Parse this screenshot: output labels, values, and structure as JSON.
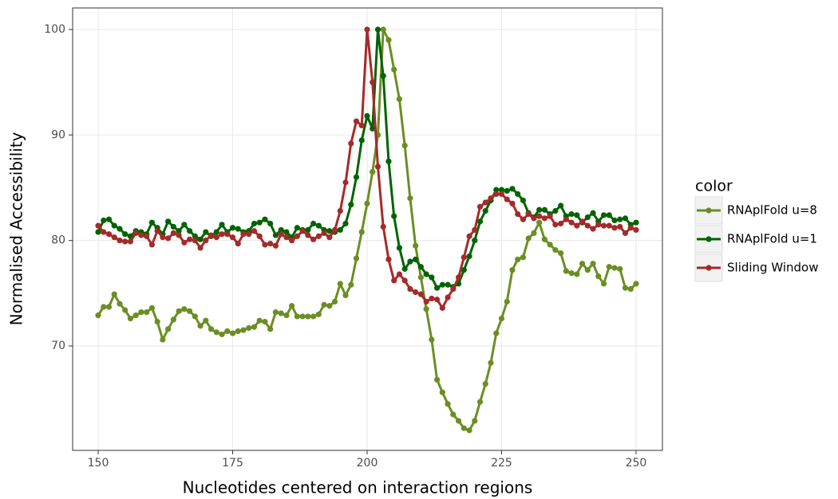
{
  "chart_data": {
    "type": "line",
    "x_label": "Nucleotides centered on interaction regions",
    "y_label": "Normalised Accessibility",
    "legend_title": "color",
    "legend": "right",
    "grid": true,
    "x": [
      150,
      151,
      152,
      153,
      154,
      155,
      156,
      157,
      158,
      159,
      160,
      161,
      162,
      163,
      164,
      165,
      166,
      167,
      168,
      169,
      170,
      171,
      172,
      173,
      174,
      175,
      176,
      177,
      178,
      179,
      180,
      181,
      182,
      183,
      184,
      185,
      186,
      187,
      188,
      189,
      190,
      191,
      192,
      193,
      194,
      195,
      196,
      197,
      198,
      199,
      200,
      201,
      202,
      203,
      204,
      205,
      206,
      207,
      208,
      209,
      210,
      211,
      212,
      213,
      214,
      215,
      216,
      217,
      218,
      219,
      220,
      221,
      222,
      223,
      224,
      225,
      226,
      227,
      228,
      229,
      230,
      231,
      232,
      233,
      234,
      235,
      236,
      237,
      238,
      239,
      240,
      241,
      242,
      243,
      244,
      245,
      246,
      247,
      248,
      249,
      250
    ],
    "xlim": [
      145.25,
      254.9
    ],
    "xticks": [
      150,
      175,
      200,
      225,
      250
    ],
    "ylim": [
      60.1,
      102.04
    ],
    "yticks": [
      70,
      80,
      90,
      100
    ],
    "series": [
      {
        "name": "RNAplFold u=8",
        "color": "#6b8e23",
        "values": [
          72.9,
          73.7,
          73.7,
          74.9,
          74.0,
          73.4,
          72.6,
          72.9,
          73.2,
          73.2,
          73.6,
          72.3,
          70.6,
          71.6,
          72.5,
          73.3,
          73.5,
          73.3,
          72.8,
          71.9,
          72.4,
          71.6,
          71.3,
          71.1,
          71.4,
          71.2,
          71.4,
          71.5,
          71.7,
          71.8,
          72.4,
          72.3,
          71.6,
          73.2,
          73.1,
          72.9,
          73.8,
          72.8,
          72.8,
          72.8,
          72.8,
          73.0,
          73.9,
          73.8,
          74.2,
          75.9,
          74.8,
          75.8,
          78.3,
          80.8,
          83.5,
          86.5,
          90.0,
          100,
          99.0,
          96.2,
          93.4,
          89.0,
          84.0,
          79.5,
          76.5,
          73.5,
          70.6,
          66.8,
          65.6,
          64.5,
          63.5,
          62.9,
          62.2,
          62.0,
          62.9,
          64.7,
          66.4,
          68.4,
          71.2,
          72.6,
          74.2,
          77.2,
          78.2,
          78.4,
          80.2,
          80.7,
          81.7,
          80.1,
          79.6,
          79.1,
          78.8,
          77.1,
          76.9,
          76.8,
          77.8,
          77.2,
          77.8,
          76.6,
          75.9,
          77.5,
          77.4,
          77.3,
          75.5,
          75.4,
          75.9
        ]
      },
      {
        "name": "RNAplFold u=1",
        "color": "#006400",
        "values": [
          80.8,
          81.9,
          82.0,
          81.4,
          81.1,
          80.6,
          80.4,
          80.9,
          80.8,
          80.6,
          81.7,
          81.2,
          80.6,
          81.8,
          81.3,
          80.9,
          81.5,
          80.9,
          80.4,
          80.1,
          80.8,
          80.4,
          80.8,
          81.5,
          80.8,
          81.2,
          81.1,
          80.8,
          80.9,
          81.6,
          81.7,
          82.0,
          81.6,
          80.5,
          81.0,
          80.8,
          80.3,
          81.2,
          81.0,
          81.0,
          81.6,
          81.4,
          81.0,
          80.9,
          80.8,
          81.0,
          81.6,
          83.4,
          86.0,
          89.5,
          91.8,
          90.6,
          100,
          95.6,
          87.5,
          82.3,
          79.3,
          77.3,
          78.0,
          78.2,
          77.5,
          76.8,
          76.5,
          75.5,
          75.8,
          75.8,
          75.6,
          75.9,
          77.2,
          78.5,
          80.0,
          81.8,
          82.8,
          83.8,
          84.8,
          84.8,
          84.7,
          84.9,
          84.4,
          83.8,
          82.6,
          82.2,
          82.9,
          82.9,
          82.5,
          82.8,
          83.3,
          82.3,
          82.5,
          82.4,
          81.7,
          82.2,
          82.6,
          81.8,
          82.4,
          82.4,
          81.9,
          82.0,
          82.1,
          81.5,
          81.7
        ]
      },
      {
        "name": "Sliding Window",
        "color": "#a52a2a",
        "values": [
          81.4,
          80.8,
          80.6,
          80.3,
          80.0,
          79.9,
          79.9,
          80.7,
          80.5,
          80.4,
          79.6,
          80.9,
          80.3,
          80.2,
          80.7,
          80.5,
          79.8,
          80.1,
          80.0,
          79.3,
          80.0,
          80.5,
          80.3,
          80.6,
          80.6,
          80.3,
          79.7,
          80.6,
          80.6,
          80.9,
          80.4,
          79.6,
          79.7,
          79.5,
          80.6,
          80.3,
          80.0,
          80.4,
          80.9,
          80.5,
          80.1,
          80.4,
          80.7,
          80.3,
          81.0,
          82.8,
          85.5,
          89.2,
          91.3,
          90.9,
          100,
          95.0,
          87.0,
          81.3,
          78.2,
          76.2,
          76.8,
          76.2,
          75.4,
          75.1,
          74.9,
          74.2,
          74.5,
          74.4,
          73.6,
          74.6,
          75.4,
          76.5,
          78.4,
          80.4,
          81.0,
          83.2,
          83.6,
          84.0,
          84.4,
          84.4,
          83.9,
          83.5,
          82.5,
          82.0,
          82.5,
          82.1,
          82.3,
          82.1,
          82.3,
          81.5,
          81.6,
          82.0,
          81.7,
          81.4,
          81.8,
          81.4,
          81.1,
          81.5,
          81.4,
          81.4,
          81.2,
          81.3,
          80.7,
          81.2,
          81.0
        ]
      }
    ]
  }
}
